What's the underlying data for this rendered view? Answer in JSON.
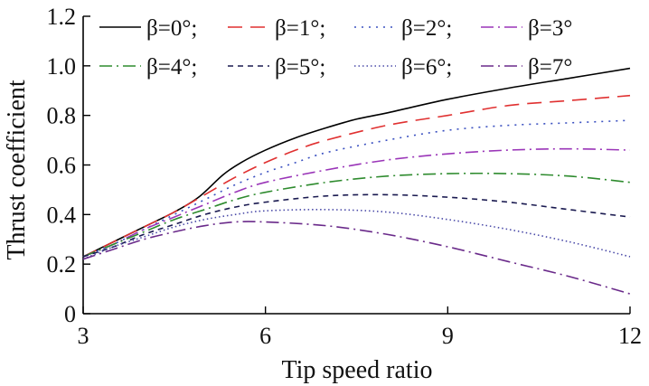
{
  "chart_data": {
    "type": "line",
    "title": "",
    "xlabel": "Tip speed ratio",
    "ylabel": "Thrust coefficient",
    "xlim": [
      3,
      12
    ],
    "ylim": [
      0,
      1.2
    ],
    "xticks": [
      "3",
      "6",
      "9",
      "12"
    ],
    "yticks": [
      "0",
      "0.2",
      "0.4",
      "0.6",
      "0.8",
      "1.0",
      "1.2"
    ],
    "grid": false,
    "legend_position": "top",
    "series": [
      {
        "name": "β=0°;",
        "color": "#000000",
        "dash": "solid",
        "x": [
          3,
          3.5,
          4,
          4.5,
          4.9,
          5.3,
          5.6,
          6,
          6.5,
          7,
          7.5,
          8,
          9,
          10,
          11,
          12
        ],
        "y": [
          0.23,
          0.29,
          0.35,
          0.41,
          0.47,
          0.56,
          0.61,
          0.66,
          0.71,
          0.75,
          0.785,
          0.81,
          0.865,
          0.91,
          0.95,
          0.99
        ]
      },
      {
        "name": "β=1°;",
        "color": "#e03030",
        "dash": "longdash",
        "x": [
          3,
          3.5,
          4,
          4.5,
          5,
          5.5,
          6,
          6.5,
          7,
          8,
          9,
          10,
          11,
          12
        ],
        "y": [
          0.23,
          0.29,
          0.35,
          0.41,
          0.48,
          0.55,
          0.61,
          0.66,
          0.7,
          0.76,
          0.8,
          0.84,
          0.86,
          0.88
        ]
      },
      {
        "name": "β=2°;",
        "color": "#3a50c0",
        "dash": "dot",
        "x": [
          3,
          3.5,
          4,
          4.5,
          5,
          5.5,
          6,
          6.5,
          7,
          8,
          9,
          10,
          11,
          12
        ],
        "y": [
          0.23,
          0.28,
          0.34,
          0.4,
          0.46,
          0.52,
          0.57,
          0.61,
          0.65,
          0.7,
          0.74,
          0.76,
          0.77,
          0.78
        ]
      },
      {
        "name": "β=3°",
        "color": "#9a35b8",
        "dash": "dashdot",
        "x": [
          3,
          3.5,
          4,
          4.5,
          5,
          5.5,
          6,
          7,
          8,
          9,
          10,
          11,
          12
        ],
        "y": [
          0.23,
          0.28,
          0.34,
          0.39,
          0.44,
          0.49,
          0.53,
          0.58,
          0.62,
          0.645,
          0.66,
          0.665,
          0.66
        ]
      },
      {
        "name": "β=4°;",
        "color": "#2e8b2e",
        "dash": "dashdot",
        "x": [
          3,
          3.5,
          4,
          4.5,
          5,
          5.5,
          6,
          7,
          8,
          9,
          10,
          11,
          12
        ],
        "y": [
          0.23,
          0.28,
          0.33,
          0.38,
          0.42,
          0.46,
          0.49,
          0.53,
          0.555,
          0.565,
          0.565,
          0.555,
          0.53
        ]
      },
      {
        "name": "β=5°;",
        "color": "#1a1a50",
        "dash": "shortdash",
        "x": [
          3,
          3.5,
          4,
          4.5,
          5,
          5.5,
          6,
          7,
          8,
          9,
          10,
          11,
          12
        ],
        "y": [
          0.23,
          0.27,
          0.32,
          0.36,
          0.4,
          0.43,
          0.45,
          0.475,
          0.48,
          0.47,
          0.45,
          0.42,
          0.39
        ]
      },
      {
        "name": "β=6°;",
        "color": "#4a4aa8",
        "dash": "finedot",
        "x": [
          3,
          3.5,
          4,
          4.5,
          5,
          5.5,
          6,
          7,
          8,
          9,
          10,
          11,
          12
        ],
        "y": [
          0.22,
          0.27,
          0.31,
          0.35,
          0.38,
          0.4,
          0.415,
          0.42,
          0.41,
          0.38,
          0.34,
          0.29,
          0.23
        ]
      },
      {
        "name": "β=7°",
        "color": "#6a2a8a",
        "dash": "dashdot",
        "x": [
          3,
          3.5,
          4,
          4.5,
          5,
          5.5,
          6,
          7,
          8,
          9,
          10,
          11,
          12
        ],
        "y": [
          0.22,
          0.26,
          0.3,
          0.33,
          0.355,
          0.37,
          0.37,
          0.355,
          0.32,
          0.27,
          0.21,
          0.15,
          0.08
        ]
      }
    ]
  }
}
